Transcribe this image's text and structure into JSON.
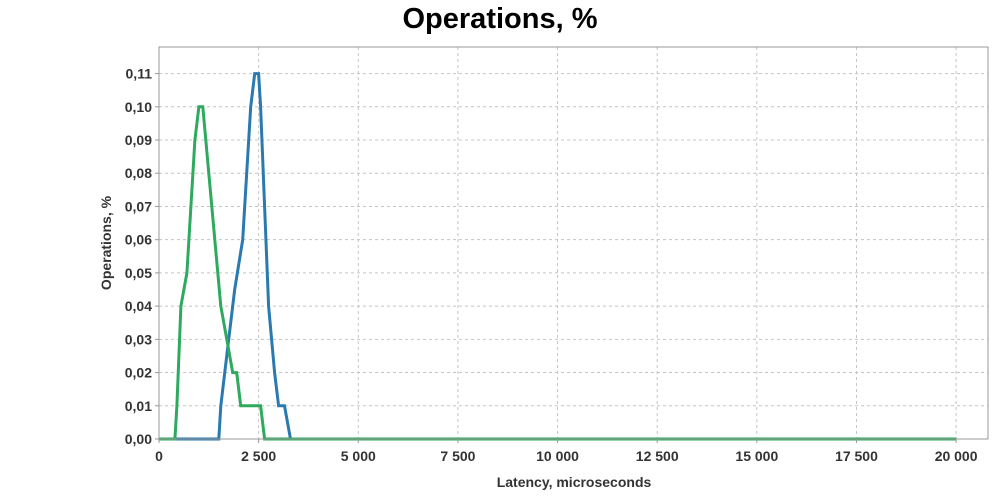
{
  "chart_data": {
    "type": "line",
    "title": "Operations, %",
    "xlabel": "Latency, microseconds",
    "ylabel": "Operations, %",
    "xlim": [
      0,
      20800
    ],
    "ylim": [
      0,
      0.118
    ],
    "grid": true,
    "x_ticks": [
      {
        "value": 0,
        "label": "0"
      },
      {
        "value": 2500,
        "label": "2 500"
      },
      {
        "value": 5000,
        "label": "5 000"
      },
      {
        "value": 7500,
        "label": "7 500"
      },
      {
        "value": 10000,
        "label": "10 000"
      },
      {
        "value": 12500,
        "label": "12 500"
      },
      {
        "value": 15000,
        "label": "15 000"
      },
      {
        "value": 17500,
        "label": "17 500"
      },
      {
        "value": 20000,
        "label": "20 000"
      }
    ],
    "y_ticks": [
      {
        "value": 0.0,
        "label": "0,00"
      },
      {
        "value": 0.01,
        "label": "0,01"
      },
      {
        "value": 0.02,
        "label": "0,02"
      },
      {
        "value": 0.03,
        "label": "0,03"
      },
      {
        "value": 0.04,
        "label": "0,04"
      },
      {
        "value": 0.05,
        "label": "0,05"
      },
      {
        "value": 0.06,
        "label": "0,06"
      },
      {
        "value": 0.07,
        "label": "0,07"
      },
      {
        "value": 0.08,
        "label": "0,08"
      },
      {
        "value": 0.09,
        "label": "0,09"
      },
      {
        "value": 0.1,
        "label": "0,10"
      },
      {
        "value": 0.11,
        "label": "0,11"
      }
    ],
    "series": [
      {
        "color": "#2a7ab0",
        "points": [
          [
            0,
            0
          ],
          [
            1500,
            0
          ],
          [
            1550,
            0.01
          ],
          [
            1750,
            0.03
          ],
          [
            1900,
            0.045
          ],
          [
            2100,
            0.06
          ],
          [
            2300,
            0.1
          ],
          [
            2400,
            0.11
          ],
          [
            2500,
            0.11
          ],
          [
            2550,
            0.1
          ],
          [
            2750,
            0.04
          ],
          [
            2900,
            0.02
          ],
          [
            3000,
            0.01
          ],
          [
            3150,
            0.01
          ],
          [
            3300,
            0
          ],
          [
            20000,
            0
          ]
        ]
      },
      {
        "color": "#2eaa5e",
        "points": [
          [
            0,
            0
          ],
          [
            400,
            0
          ],
          [
            450,
            0.01
          ],
          [
            550,
            0.04
          ],
          [
            700,
            0.05
          ],
          [
            900,
            0.09
          ],
          [
            1000,
            0.1
          ],
          [
            1100,
            0.1
          ],
          [
            1400,
            0.06
          ],
          [
            1550,
            0.04
          ],
          [
            1700,
            0.03
          ],
          [
            1850,
            0.02
          ],
          [
            1950,
            0.02
          ],
          [
            2050,
            0.01
          ],
          [
            2550,
            0.01
          ],
          [
            2650,
            0
          ],
          [
            20000,
            0
          ]
        ]
      }
    ]
  }
}
